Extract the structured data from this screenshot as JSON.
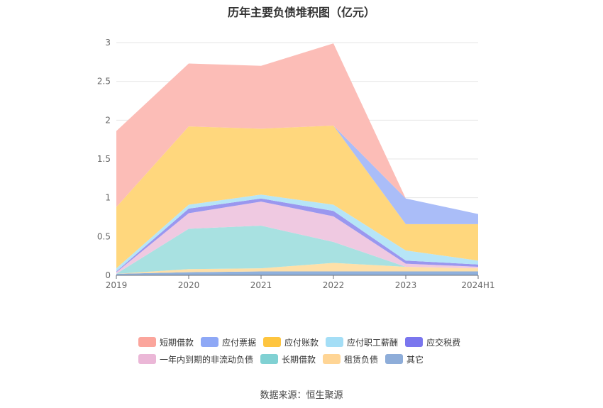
{
  "chart_data": {
    "type": "area",
    "stacked": true,
    "title": "历年主要负债堆积图（亿元）",
    "x": [
      "2019",
      "2020",
      "2021",
      "2022",
      "2023",
      "2024H1"
    ],
    "yticks": [
      "0",
      "0.5",
      "1",
      "1.5",
      "2",
      "2.5",
      "3"
    ],
    "ylim": [
      0,
      3
    ],
    "grid": true,
    "legend_position": "bottom",
    "series": [
      {
        "name": "其它",
        "color": "#8fb0dc",
        "values": [
          0.02,
          0.04,
          0.05,
          0.05,
          0.05,
          0.05
        ]
      },
      {
        "name": "租赁负债",
        "color": "#ffe0a8",
        "values": [
          0.0,
          0.04,
          0.04,
          0.11,
          0.06,
          0.04
        ]
      },
      {
        "name": "长期借款",
        "color": "#a8e1e1",
        "values": [
          0.0,
          0.52,
          0.55,
          0.27,
          0.0,
          0.0
        ]
      },
      {
        "name": "一年内到期的非流动负债",
        "color": "#efc9e1",
        "values": [
          0.02,
          0.2,
          0.31,
          0.33,
          0.04,
          0.02
        ]
      },
      {
        "name": "应交税费",
        "color": "#9a97ef",
        "values": [
          0.01,
          0.06,
          0.04,
          0.07,
          0.04,
          0.03
        ]
      },
      {
        "name": "应付职工薪酬",
        "color": "#b6e5f7",
        "values": [
          0.04,
          0.05,
          0.05,
          0.08,
          0.13,
          0.05
        ]
      },
      {
        "name": "应付账款",
        "color": "#ffd77d",
        "values": [
          0.79,
          1.01,
          0.85,
          1.02,
          0.34,
          0.47
        ]
      },
      {
        "name": "应付票据",
        "color": "#aabdf8",
        "values": [
          0.0,
          0.0,
          0.0,
          0.0,
          0.33,
          0.13
        ]
      },
      {
        "name": "短期借款",
        "color": "#fcbdb7",
        "values": [
          0.98,
          0.81,
          0.81,
          1.06,
          0.0,
          0.0
        ]
      }
    ],
    "legend": [
      [
        {
          "name": "短期借款",
          "color": "#fba59c"
        },
        {
          "name": "应付票据",
          "color": "#8ea8f6"
        },
        {
          "name": "应付账款",
          "color": "#fec53f"
        },
        {
          "name": "应付职工薪酬",
          "color": "#a4def6"
        },
        {
          "name": "应交税费",
          "color": "#7a76ee"
        }
      ],
      [
        {
          "name": "一年内到期的非流动负债",
          "color": "#ebb7d7"
        },
        {
          "name": "长期借款",
          "color": "#80d1d3"
        },
        {
          "name": "租赁负债",
          "color": "#ffd595"
        },
        {
          "name": "其它",
          "color": "#8eadd9"
        }
      ]
    ]
  },
  "source": "数据来源：恒生聚源"
}
